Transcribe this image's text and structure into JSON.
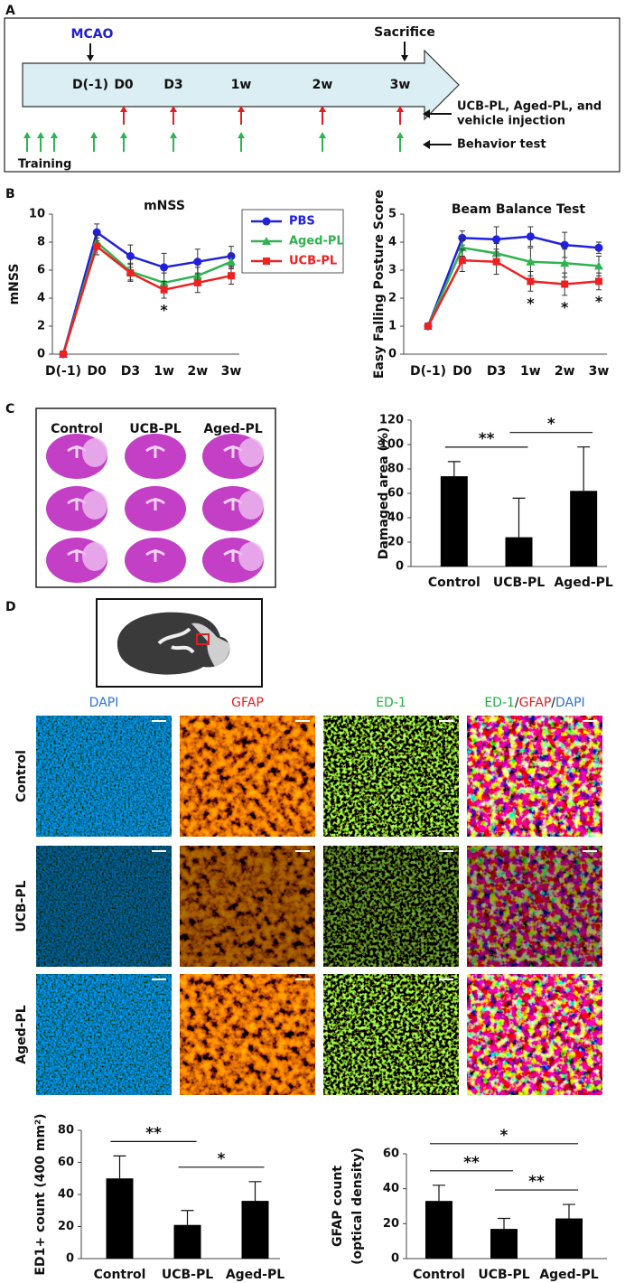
{
  "panel_labels": [
    "A",
    "B",
    "C",
    "D"
  ],
  "timeline": {
    "markers": [
      "MCAO",
      "Sacrifice"
    ],
    "points": [
      "D(-1)",
      "D0",
      "D3",
      "1w",
      "2w",
      "3w"
    ],
    "training": "Training",
    "injection": [
      "UCB-PL, Aged-PL, and",
      "vehicle injection"
    ],
    "behavior": "Behavior test"
  },
  "chart_data": [
    {
      "type": "line",
      "title": "mNSS",
      "y_label": "mNSS",
      "categories": [
        "D(-1)",
        "D0",
        "D3",
        "1w",
        "2w",
        "3w"
      ],
      "ylim": [
        0,
        10
      ],
      "yticks": [
        0,
        2,
        4,
        6,
        8,
        10
      ],
      "legend": "right",
      "series": [
        {
          "name": "PBS",
          "color": "#2020dd",
          "marker": "circle",
          "values": [
            0,
            8.7,
            7.0,
            6.2,
            6.6,
            7.0
          ],
          "errors": [
            0,
            0.6,
            0.8,
            1.0,
            0.9,
            0.7
          ]
        },
        {
          "name": "Aged-PL",
          "color": "#2fb350",
          "marker": "triangle",
          "values": [
            0,
            8.0,
            5.9,
            5.1,
            5.6,
            6.6
          ],
          "errors": [
            0,
            0.5,
            0.6,
            0.7,
            0.6,
            0.5
          ]
        },
        {
          "name": "UCB-PL",
          "color": "#ee2020",
          "marker": "square",
          "values": [
            0,
            7.7,
            5.8,
            4.6,
            5.1,
            5.6
          ],
          "errors": [
            0,
            0.6,
            0.6,
            0.6,
            0.7,
            0.6
          ]
        }
      ],
      "annotations": [
        {
          "category": "1w",
          "label": "*"
        }
      ]
    },
    {
      "type": "line",
      "title": "Beam Balance Test",
      "y_label": "Easy Falling Posture Score",
      "categories": [
        "D(-1)",
        "D0",
        "D3",
        "1w",
        "2w",
        "3w"
      ],
      "ylim": [
        0,
        5
      ],
      "yticks": [
        0,
        1,
        2,
        3,
        4,
        5
      ],
      "series": [
        {
          "color": "#2020dd",
          "marker": "circle",
          "values": [
            1,
            4.15,
            4.1,
            4.2,
            3.9,
            3.8
          ],
          "errors": [
            0,
            0.25,
            0.45,
            0.35,
            0.45,
            0.2
          ]
        },
        {
          "color": "#2fb350",
          "marker": "triangle",
          "values": [
            1,
            3.8,
            3.6,
            3.3,
            3.25,
            3.15
          ],
          "errors": [
            0,
            0.3,
            0.35,
            0.5,
            0.5,
            0.35
          ]
        },
        {
          "color": "#ee2020",
          "marker": "square",
          "values": [
            1,
            3.35,
            3.3,
            2.6,
            2.5,
            2.6
          ],
          "errors": [
            0,
            0.4,
            0.45,
            0.35,
            0.4,
            0.3
          ]
        }
      ],
      "annotations": [
        {
          "category": "1w",
          "label": "*"
        },
        {
          "category": "2w",
          "label": "*"
        },
        {
          "category": "3w",
          "label": "*"
        }
      ]
    },
    {
      "type": "bar",
      "y_label": "Damaged area (%)",
      "categories": [
        "Control",
        "UCB-PL",
        "Aged-PL"
      ],
      "values": [
        74,
        24,
        62
      ],
      "errors": [
        12,
        32,
        36
      ],
      "color": "#000000",
      "ylim": [
        0,
        120
      ],
      "yticks": [
        0,
        20,
        40,
        60,
        80,
        100,
        120
      ],
      "brackets": [
        {
          "from": "Control",
          "to": "UCB-PL",
          "label": "**"
        },
        {
          "from": "UCB-PL",
          "to": "Aged-PL",
          "label": "*"
        }
      ]
    },
    {
      "type": "bar",
      "y_label": "ED1+ count (400 mm²)",
      "categories": [
        "Control",
        "UCB-PL",
        "Aged-PL"
      ],
      "values": [
        50,
        21,
        36
      ],
      "errors": [
        14,
        9,
        12
      ],
      "color": "#000000",
      "ylim": [
        0,
        80
      ],
      "yticks": [
        0,
        20,
        40,
        60,
        80
      ],
      "brackets": [
        {
          "from": "Control",
          "to": "UCB-PL",
          "label": "**"
        },
        {
          "from": "UCB-PL",
          "to": "Aged-PL",
          "label": "*"
        }
      ]
    },
    {
      "type": "bar",
      "y_label": [
        "GFAP count",
        "(optical density)"
      ],
      "categories": [
        "Control",
        "UCB-PL",
        "Aged-PL"
      ],
      "values": [
        33,
        17,
        23
      ],
      "errors": [
        9,
        6,
        8
      ],
      "color": "#000000",
      "ylim": [
        0,
        60
      ],
      "yticks": [
        0,
        20,
        40,
        60
      ],
      "brackets": [
        {
          "from": "Control",
          "to": "UCB-PL",
          "label": "**"
        },
        {
          "from": "UCB-PL",
          "to": "Aged-PL",
          "label": "**"
        },
        {
          "from": "Control",
          "to": "Aged-PL",
          "label": "*"
        }
      ]
    }
  ],
  "panel_c": {
    "columns": [
      "Control",
      "UCB-PL",
      "Aged-PL"
    ]
  },
  "panel_d": {
    "columns": [
      "DAPI",
      "GFAP",
      "ED-1"
    ],
    "merged": [
      "ED-1",
      "/",
      "GFAP",
      "/",
      "DAPI"
    ],
    "rows": [
      "Control",
      "UCB-PL",
      "Aged-PL"
    ]
  }
}
